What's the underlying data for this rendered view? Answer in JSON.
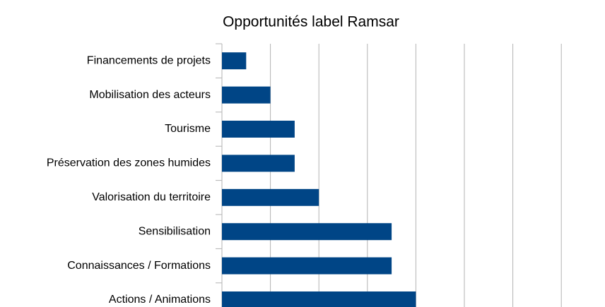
{
  "chart_data": {
    "type": "bar",
    "orientation": "horizontal",
    "title": "Opportunités label Ramsar",
    "categories": [
      "Financements de projets",
      "Mobilisation des acteurs",
      "Tourisme",
      "Préservation des zones humides",
      "Valorisation du territoire",
      "Sensibilisation",
      "Connaissances / Formations",
      "Actions / Animations"
    ],
    "values": [
      0.5,
      1,
      1.5,
      1.5,
      2,
      3.5,
      3.5,
      4
    ],
    "color": "#004586",
    "xlim": [
      0,
      8
    ],
    "xticks": [
      0,
      1,
      2,
      3,
      4,
      5,
      6,
      7
    ],
    "grid": true
  }
}
